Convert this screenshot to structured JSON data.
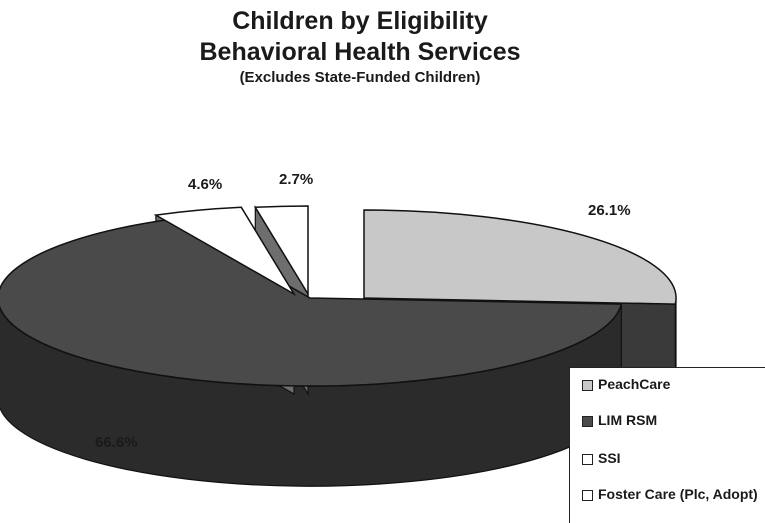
{
  "title_lines": [
    "Children by Eligibility",
    "Behavioral Health Services"
  ],
  "subtitle": "(Excludes State-Funded Children)",
  "chart_data": {
    "type": "pie",
    "style": "3d-exploded",
    "title": "Children by Eligibility Behavioral Health Services",
    "subtitle": "(Excludes State-Funded Children)",
    "categories": [
      "PeachCare",
      "LIM RSM",
      "SSI",
      "Foster Care (Plc, Adopt)"
    ],
    "values": [
      26.1,
      66.6,
      4.6,
      2.7
    ],
    "labels": [
      "26.1%",
      "66.6%",
      "4.6%",
      "2.7%"
    ],
    "colors": [
      "#c8c8c8",
      "#4a4a4a",
      "#ffffff",
      "#ffffff"
    ],
    "legend_position": "bottom-right"
  },
  "legend": [
    {
      "label": "PeachCare",
      "color": "#c8c8c8"
    },
    {
      "label": "LIM RSM",
      "color": "#4a4a4a"
    },
    {
      "label": "SSI",
      "color": "#ffffff"
    },
    {
      "label": "Foster Care (Plc, Adopt)",
      "color": "#ffffff"
    }
  ]
}
